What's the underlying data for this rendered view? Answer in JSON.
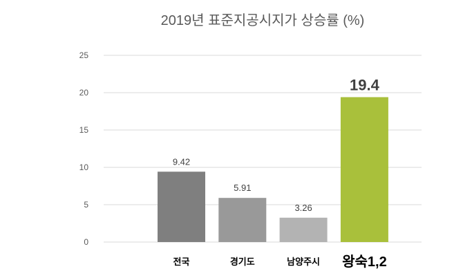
{
  "chart_data": {
    "type": "bar",
    "title": "2019년 표준지공시지가 상승률 (%)",
    "xlabel": "",
    "ylabel": "",
    "ylim": [
      0,
      25
    ],
    "yticks": [
      "0",
      "5",
      "10",
      "15",
      "20",
      "25"
    ],
    "grid": true,
    "categories": [
      "전국",
      "경기도",
      "남양주시",
      "왕숙1,2"
    ],
    "values": [
      9.42,
      5.91,
      3.26,
      19.4
    ],
    "data_labels": [
      "9.42",
      "5.91",
      "3.26",
      "19.4"
    ],
    "colors": [
      "#7f7f7f",
      "#999999",
      "#b3b3b3",
      "#a9c03b"
    ],
    "highlight_index": 3
  }
}
